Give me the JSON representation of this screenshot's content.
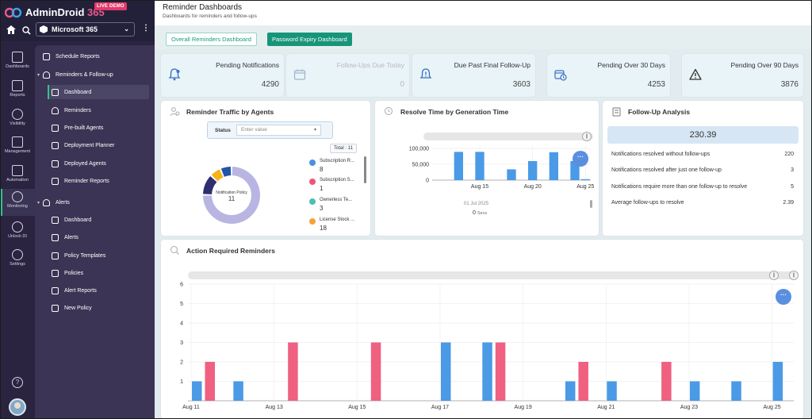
{
  "app": {
    "brand_name": "AdminDroid",
    "brand_suffix": "365",
    "live_badge": "LIVE DEMO",
    "tenant": "Microsoft 365"
  },
  "rail": [
    {
      "label": "Dashboards",
      "icon": "bar-chart-icon"
    },
    {
      "label": "Reports",
      "icon": "report-icon"
    },
    {
      "label": "Visibility",
      "icon": "visibility-360-icon"
    },
    {
      "label": "Management",
      "icon": "management-icon"
    },
    {
      "label": "Automation",
      "icon": "automation-icon"
    },
    {
      "label": "Monitoring",
      "icon": "monitoring-icon",
      "active": true
    },
    {
      "label": "Unlock DI",
      "icon": "unlock-icon"
    },
    {
      "label": "Settings",
      "icon": "gear-icon"
    }
  ],
  "subnav": {
    "schedule_reports": "Schedule Reports",
    "reminders_followup": "Reminders & Follow-up",
    "dashboard": "Dashboard",
    "reminders": "Reminders",
    "prebuilt_agents": "Pre-built Agents",
    "deployment_planner": "Deployment Planner",
    "deployed_agents": "Deployed Agents",
    "reminder_reports": "Reminder Reports",
    "alerts": "Alerts",
    "alerts_dashboard": "Dashboard",
    "alerts_alerts": "Alerts",
    "policy_templates": "Policy Templates",
    "policies": "Policies",
    "alert_reports": "Alert Reports",
    "new_policy": "New Policy"
  },
  "header": {
    "title": "Reminder Dashboards",
    "subtitle": "Dashboards for reminders and follow-ups"
  },
  "tabs": [
    {
      "label": "Overall Reminders Dashboard",
      "active": true
    },
    {
      "label": "Password Expiry Dashboard",
      "active": false
    }
  ],
  "kpis": [
    {
      "label": "Pending Notifications",
      "value": "4290",
      "icon": "bell-icon"
    },
    {
      "label": "Follow-Ups Due Today",
      "value": "0",
      "icon": "calendar-icon",
      "faded": true
    },
    {
      "label": "Due Past Final Follow-Up",
      "value": "3603",
      "icon": "bell-alert-icon"
    },
    {
      "label": "Pending Over 30 Days",
      "value": "4253",
      "icon": "calendar-clock-icon"
    },
    {
      "label": "Pending Over 90 Days",
      "value": "3876",
      "icon": "warning-icon"
    }
  ],
  "traffic": {
    "title": "Reminder Traffic by Agents",
    "status_label": "Status",
    "status_placeholder": "Enter value",
    "total": "Total : 11",
    "center_label": "Notification Policy",
    "center_value": "11",
    "legend": [
      {
        "name": "Subscription R...",
        "count": "8",
        "color": "#4a90e2"
      },
      {
        "name": "Subscription S...",
        "count": "1",
        "color": "#ee5577"
      },
      {
        "name": "Ownerless Te...",
        "count": "3",
        "color": "#4bc0b0"
      },
      {
        "name": "License Stock ...",
        "count": "18",
        "color": "#f5a23a"
      }
    ],
    "donut": [
      {
        "value": 70,
        "color": "#b8b5e2"
      },
      {
        "value": 11,
        "color": "#2f2e6e"
      },
      {
        "value": 6,
        "color": "#f5b31a"
      },
      {
        "value": 6,
        "color": "#2255a8"
      }
    ]
  },
  "resolve": {
    "title": "Resolve Time by Generation Time",
    "selected_date": "01 Jul 2025",
    "selected_value": "0",
    "selected_unit": "Secs"
  },
  "followup": {
    "title": "Follow-Up Analysis",
    "headline": "230.39",
    "rows": [
      {
        "label": "Notifications resolved without follow-ups",
        "value": "220"
      },
      {
        "label": "Notifications resolved after just one follow-up",
        "value": "3"
      },
      {
        "label": "Notifications require more than one follow-up to resolve",
        "value": "5"
      },
      {
        "label": "Average follow-ups to resolve",
        "value": "2.39"
      }
    ]
  },
  "action": {
    "title": "Action Required Reminders"
  },
  "colors": {
    "accent": "#17957a",
    "bar_blue": "#4a9ae6",
    "bar_pink": "#ef6081"
  },
  "chart_data": [
    {
      "type": "bar",
      "title": "Resolve Time by Generation Time",
      "yticks": [
        "0",
        "50,000",
        "100,000"
      ],
      "ylim": [
        0,
        110000
      ],
      "xticks": [
        "Aug 15",
        "Aug 20",
        "Aug 25"
      ],
      "x": [
        "Aug 11",
        "Aug 12",
        "Aug 13",
        "Aug 14",
        "Aug 15",
        "Aug 16",
        "Aug 17",
        "Aug 18",
        "Aug 19",
        "Aug 20",
        "Aug 21",
        "Aug 22",
        "Aug 23",
        "Aug 24",
        "Aug 25"
      ],
      "values": [
        0,
        0,
        89000,
        0,
        89000,
        0,
        0,
        34000,
        0,
        60000,
        0,
        88000,
        0,
        60000,
        3000
      ],
      "grid": true
    },
    {
      "type": "bar",
      "title": "Action Required Reminders",
      "ylim": [
        0,
        6
      ],
      "yticks": [
        "1",
        "2",
        "3",
        "4",
        "5",
        "6"
      ],
      "xticks": [
        "Aug 11",
        "Aug 13",
        "Aug 15",
        "Aug 17",
        "Aug 19",
        "Aug 21",
        "Aug 23",
        "Aug 25"
      ],
      "x": [
        "Aug 11",
        "Aug 12",
        "Aug 13",
        "Aug 14",
        "Aug 15",
        "Aug 16",
        "Aug 17",
        "Aug 18",
        "Aug 19",
        "Aug 20",
        "Aug 21",
        "Aug 22",
        "Aug 23",
        "Aug 24",
        "Aug 25"
      ],
      "series": [
        {
          "color": "#4a9ae6",
          "values": [
            1,
            1,
            0,
            0,
            0,
            0,
            3,
            3,
            0,
            1,
            1,
            0,
            1,
            1,
            2
          ]
        },
        {
          "color": "#ef6081",
          "values": [
            2,
            0,
            3,
            0,
            3,
            0,
            0,
            3,
            0,
            2,
            0,
            2,
            0,
            0,
            0
          ]
        }
      ],
      "grid": true
    }
  ]
}
